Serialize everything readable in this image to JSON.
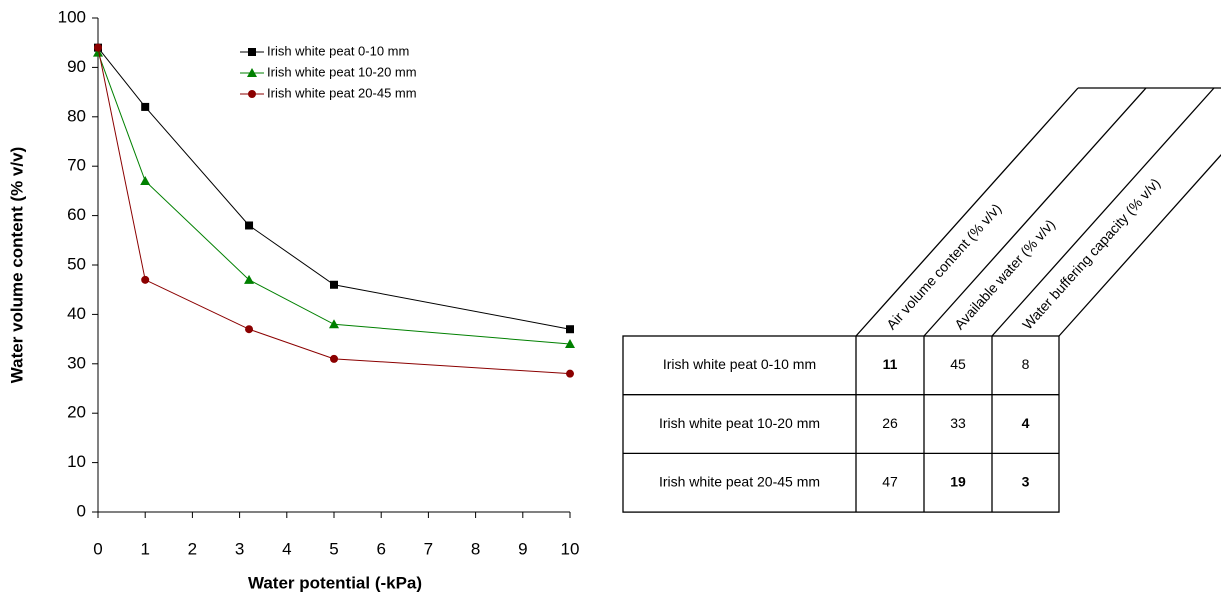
{
  "chart_data": {
    "type": "line",
    "x_label": "Water potential (-kPa)",
    "y_label": "Water volume content (% v/v)",
    "x": [
      0,
      1,
      3.2,
      5,
      10
    ],
    "series": [
      {
        "name": "Irish white peat 0-10 mm",
        "color": "#000000",
        "marker": "square",
        "values": [
          94,
          82,
          58,
          46,
          37
        ]
      },
      {
        "name": "Irish white peat 10-20 mm",
        "color": "#008000",
        "marker": "triangle",
        "values": [
          93,
          67,
          47,
          38,
          34
        ]
      },
      {
        "name": "Irish white peat 20-45 mm",
        "color": "#8b0000",
        "marker": "circle",
        "values": [
          94,
          47,
          37,
          31,
          28
        ]
      }
    ],
    "xlim": [
      0,
      10
    ],
    "xticks": [
      0,
      1,
      2,
      3,
      4,
      5,
      6,
      7,
      8,
      9,
      10
    ],
    "ylim": [
      0,
      100
    ],
    "yticks": [
      0,
      10,
      20,
      30,
      40,
      50,
      60,
      70,
      80,
      90,
      100
    ],
    "legend": "top-center"
  },
  "table": {
    "columns": [
      "Air volume content (% v/v)",
      "Available water (% v/v)",
      "Water buffering capacity (% v/v)"
    ],
    "rows": [
      [
        "Irish white peat 0-10 mm",
        {
          "value": 11,
          "bold": true
        },
        45,
        8
      ],
      [
        "Irish white peat 10-20 mm",
        26,
        33,
        {
          "value": 4,
          "bold": true
        }
      ],
      [
        "Irish white peat 20-45 mm",
        47,
        {
          "value": 19,
          "bold": true
        },
        {
          "value": 3,
          "bold": true
        }
      ]
    ]
  }
}
